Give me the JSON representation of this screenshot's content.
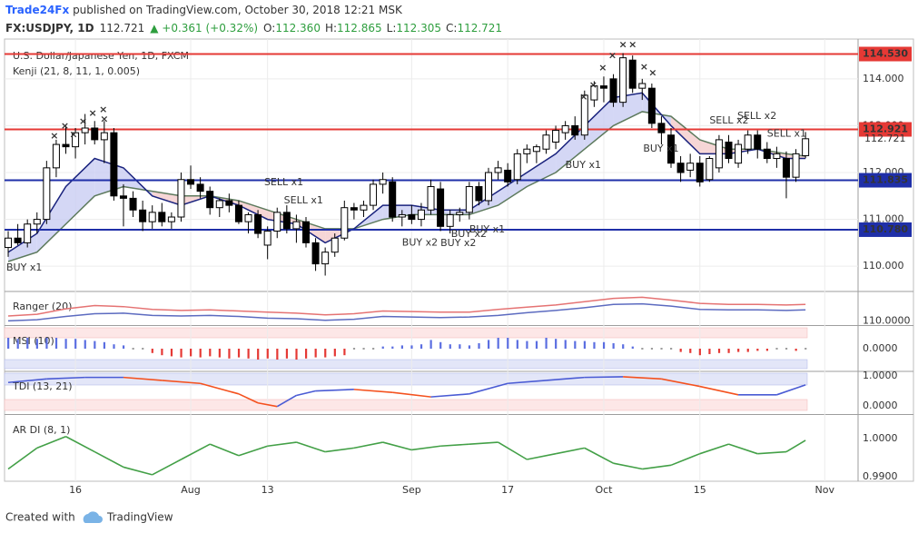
{
  "header": {
    "brand": "Trade24Fx",
    "published": " published on TradingView.com, October 30, 2018 12:21 MSK",
    "symbol": "FX:USDJPY, 1D",
    "price": "112.721",
    "change": "▲ +0.361 (+0.32%)",
    "ohlc": [
      {
        "key": "O:",
        "value": "112.360"
      },
      {
        "key": "H:",
        "value": "112.865"
      },
      {
        "key": "L:",
        "value": "112.305"
      },
      {
        "key": "C:",
        "value": "112.721"
      }
    ]
  },
  "chart_data": {
    "type": "candlestick",
    "title": "U.S. Dollar/Japanese Yen, 1D, FXCM",
    "xlim": [
      -0.38,
      88.47
    ],
    "xticks": [
      {
        "value": 7,
        "label": "16"
      },
      {
        "value": 19,
        "label": "Aug"
      },
      {
        "value": 27,
        "label": "13"
      },
      {
        "value": 42,
        "label": "Sep"
      },
      {
        "value": 52,
        "label": "17"
      },
      {
        "value": 62,
        "label": "Oct"
      },
      {
        "value": 72,
        "label": "15"
      },
      {
        "value": 85,
        "label": "Nov"
      }
    ],
    "ylim": [
      109.48,
      114.85
    ],
    "yticks": [
      {
        "value": 110,
        "label": "110.000"
      },
      {
        "value": 111,
        "label": "111.000"
      },
      {
        "value": 112,
        "label": "112.000"
      },
      {
        "value": 113,
        "label": "113.000"
      },
      {
        "value": 114,
        "label": "114.000"
      }
    ],
    "grid": true,
    "up_color": "#ffffff",
    "down_color": "#000000",
    "open": [
      110.4,
      110.6,
      110.5,
      110.9,
      111.0,
      112.1,
      112.6,
      112.55,
      112.85,
      112.95,
      112.7,
      112.85,
      111.5,
      111.45,
      111.2,
      110.95,
      111.15,
      110.95,
      111.05,
      111.85,
      111.75,
      111.6,
      111.25,
      111.4,
      111.3,
      110.95,
      111.1,
      110.45,
      110.75,
      111.15,
      110.8,
      110.95,
      110.5,
      110.05,
      110.3,
      110.6,
      111.25,
      111.2,
      111.3,
      111.75,
      111.8,
      111.05,
      111.1,
      111.0,
      111.2,
      111.65,
      110.85,
      111.1,
      111.15,
      111.7,
      111.4,
      112.0,
      112.05,
      111.85,
      112.4,
      112.45,
      112.5,
      112.65,
      112.85,
      113.0,
      112.8,
      113.55,
      113.85,
      114.0,
      113.5,
      114.4,
      113.8,
      113.8,
      113.05,
      112.8,
      112.2,
      112.05,
      112.2,
      111.85,
      112.1,
      112.65,
      112.2,
      112.5,
      112.8,
      112.5,
      112.3,
      112.3,
      111.9,
      112.36
    ],
    "high": [
      110.75,
      110.9,
      111.0,
      111.15,
      112.25,
      112.7,
      113.0,
      112.95,
      113.25,
      113.1,
      113.1,
      112.95,
      111.75,
      111.6,
      111.4,
      111.3,
      111.35,
      111.15,
      112.0,
      112.15,
      111.9,
      111.7,
      111.45,
      111.55,
      111.4,
      111.15,
      111.2,
      110.85,
      111.25,
      111.3,
      111.1,
      111.05,
      110.6,
      110.4,
      110.7,
      111.4,
      111.35,
      111.4,
      111.85,
      112.0,
      111.9,
      111.2,
      111.3,
      111.35,
      111.85,
      111.8,
      111.2,
      111.25,
      111.8,
      111.8,
      112.1,
      112.25,
      112.2,
      112.5,
      112.6,
      112.6,
      112.9,
      113.0,
      113.1,
      113.2,
      113.75,
      113.95,
      114.05,
      114.1,
      114.55,
      114.5,
      114.0,
      113.9,
      113.2,
      112.95,
      112.35,
      112.4,
      112.35,
      112.35,
      112.8,
      112.8,
      112.7,
      112.9,
      112.9,
      112.65,
      112.55,
      112.45,
      112.5,
      112.865
    ],
    "low": [
      110.2,
      110.45,
      110.4,
      110.7,
      110.9,
      111.9,
      112.4,
      112.3,
      112.6,
      112.6,
      112.2,
      111.4,
      110.85,
      111.05,
      110.75,
      110.8,
      110.85,
      110.8,
      110.95,
      111.65,
      111.45,
      111.1,
      111.05,
      111.15,
      110.9,
      110.7,
      110.6,
      110.15,
      110.6,
      110.7,
      110.5,
      110.4,
      109.9,
      109.8,
      110.2,
      110.55,
      111.0,
      111.05,
      111.2,
      111.55,
      110.95,
      110.85,
      110.9,
      110.85,
      111.1,
      110.75,
      110.7,
      110.95,
      111.0,
      111.3,
      111.3,
      111.85,
      111.7,
      111.75,
      112.2,
      112.2,
      112.4,
      112.5,
      112.7,
      112.7,
      112.7,
      113.4,
      113.5,
      113.4,
      113.4,
      113.7,
      113.55,
      112.95,
      112.6,
      112.1,
      111.8,
      111.9,
      111.7,
      111.8,
      112.0,
      112.2,
      112.1,
      112.4,
      112.3,
      112.2,
      112.1,
      111.45,
      111.8,
      112.305
    ],
    "close": [
      110.6,
      110.5,
      110.9,
      111.0,
      112.1,
      112.6,
      112.55,
      112.85,
      112.95,
      112.7,
      112.85,
      111.5,
      111.45,
      111.2,
      110.95,
      111.15,
      110.95,
      111.05,
      111.85,
      111.75,
      111.6,
      111.25,
      111.4,
      111.3,
      110.95,
      111.1,
      110.7,
      110.75,
      111.15,
      110.8,
      110.95,
      110.5,
      110.05,
      110.3,
      110.6,
      111.25,
      111.2,
      111.3,
      111.75,
      111.85,
      111.05,
      111.1,
      111.0,
      111.2,
      111.7,
      110.85,
      111.1,
      111.15,
      111.7,
      111.4,
      112.0,
      112.1,
      111.8,
      112.4,
      112.5,
      112.55,
      112.8,
      112.9,
      113.0,
      112.8,
      113.65,
      113.85,
      113.8,
      113.5,
      114.45,
      113.8,
      113.9,
      113.05,
      112.85,
      112.2,
      112.0,
      112.2,
      111.8,
      112.3,
      112.7,
      112.3,
      112.6,
      112.8,
      112.5,
      112.3,
      112.4,
      111.9,
      112.4,
      112.721
    ],
    "last": 112.721,
    "levels": [
      {
        "value": 114.53,
        "label": "114.530",
        "color": "#e53935"
      },
      {
        "value": 112.921,
        "label": "112.921",
        "color": "#e53935"
      },
      {
        "value": 111.835,
        "label": "111.835",
        "color": "#1f2fa8"
      },
      {
        "value": 110.78,
        "label": "110.780",
        "color": "#1f2fa8"
      }
    ],
    "kenji": {
      "name": "Kenji (21, 8, 11, 1, 0.005)",
      "x": [
        0,
        3,
        6,
        9,
        12,
        15,
        18,
        21,
        24,
        27,
        30,
        33,
        36,
        39,
        42,
        45,
        48,
        51,
        54,
        57,
        60,
        63,
        66,
        69,
        72,
        75,
        78,
        81,
        83
      ],
      "fast": {
        "color": "#1a237e",
        "values": [
          110.3,
          110.7,
          111.7,
          112.3,
          112.1,
          111.5,
          111.3,
          111.5,
          111.3,
          111.0,
          110.9,
          110.5,
          110.8,
          111.3,
          111.3,
          111.2,
          111.2,
          111.6,
          112.0,
          112.4,
          113.0,
          113.6,
          113.7,
          113.0,
          112.4,
          112.4,
          112.5,
          112.3,
          112.3
        ]
      },
      "slow": {
        "color": "#5d7a5d",
        "values": [
          110.1,
          110.3,
          110.9,
          111.5,
          111.7,
          111.6,
          111.5,
          111.5,
          111.4,
          111.2,
          111.0,
          110.8,
          110.8,
          111.0,
          111.1,
          111.1,
          111.1,
          111.3,
          111.7,
          112.0,
          112.5,
          113.0,
          113.3,
          113.2,
          112.7,
          112.5,
          112.5,
          112.4,
          112.35
        ]
      },
      "bull_fill": "#c9cdf2",
      "bear_fill": "#f4cccc"
    },
    "signals": [
      {
        "text": "BUY x1",
        "x": -0.19,
        "y": 109.96,
        "color": "#5b6ee1"
      },
      {
        "text": "SELL x1",
        "x": 26.65,
        "y": 111.79,
        "color": "#e04848"
      },
      {
        "text": "SELL x1",
        "x": 28.7,
        "y": 111.4,
        "color": "#e04848"
      },
      {
        "text": "BUY x2",
        "x": 41.0,
        "y": 110.5,
        "color": "#5b6ee1"
      },
      {
        "text": "BUY x2",
        "x": 45.0,
        "y": 110.49,
        "color": "#5b6ee1"
      },
      {
        "text": "BUY x2",
        "x": 46.1,
        "y": 110.68,
        "color": "#5b6ee1"
      },
      {
        "text": "BUY x1",
        "x": 48.0,
        "y": 110.78,
        "color": "#5b6ee1"
      },
      {
        "text": "BUY x1",
        "x": 58.0,
        "y": 112.16,
        "color": "#5b6ee1"
      },
      {
        "text": "BUY x1",
        "x": 66.1,
        "y": 112.5,
        "color": "#5b6ee1"
      },
      {
        "text": "SELL x2",
        "x": 73.0,
        "y": 113.11,
        "color": "#e04848"
      },
      {
        "text": "SELL x2",
        "x": 75.9,
        "y": 113.2,
        "color": "#e04848"
      },
      {
        "text": "SELL x1",
        "x": 79.0,
        "y": 112.82,
        "color": "#e04848"
      }
    ],
    "markers": {
      "symbol": "×",
      "color": "#5b6ee1",
      "x": [
        4.8,
        5.9,
        6.8,
        7.8,
        8.8,
        9.9,
        10.0,
        59.9,
        60.9,
        61.9,
        62.9,
        64.0,
        65.0,
        66.2,
        67.1
      ],
      "y": [
        112.78,
        112.99,
        112.8,
        113.09,
        113.26,
        113.34,
        113.13,
        113.61,
        113.86,
        114.23,
        114.49,
        114.72,
        114.72,
        114.25,
        114.12
      ]
    },
    "indicators": [
      {
        "type": "bands",
        "name": "Ranger (20)",
        "ylim": [
          109.4,
          115.2
        ],
        "yticks": [
          {
            "value": 110,
            "label": "110.0000"
          }
        ],
        "x": [
          0,
          3,
          6,
          9,
          12,
          15,
          18,
          21,
          24,
          27,
          30,
          33,
          36,
          39,
          42,
          45,
          48,
          51,
          54,
          57,
          60,
          63,
          66,
          69,
          72,
          75,
          78,
          81,
          83
        ],
        "series": [
          {
            "color": "#e57373",
            "values": [
              110.9,
              111.2,
              112.2,
              112.8,
              112.6,
              112.1,
              111.9,
              112.0,
              111.8,
              111.6,
              111.4,
              111.1,
              111.3,
              111.8,
              111.7,
              111.6,
              111.6,
              112.1,
              112.5,
              112.9,
              113.5,
              114.1,
              114.3,
              113.8,
              113.2,
              113.0,
              113.0,
              112.9,
              113.0
            ]
          },
          {
            "color": "#5c6bc0",
            "values": [
              110.0,
              110.2,
              110.8,
              111.3,
              111.4,
              111.0,
              110.9,
              111.0,
              110.8,
              110.5,
              110.4,
              110.1,
              110.3,
              110.8,
              110.7,
              110.6,
              110.7,
              111.0,
              111.5,
              111.9,
              112.4,
              113.0,
              113.1,
              112.7,
              112.1,
              112.0,
              112.0,
              111.9,
              112.0
            ]
          }
        ]
      },
      {
        "type": "histogram",
        "name": "MSI (10)",
        "ylim": [
          -1,
          1
        ],
        "yticks": [
          {
            "value": 0,
            "label": "0.0000"
          }
        ],
        "up_color": "#5b6ee1",
        "down_color": "#e53935",
        "zero_color": "#9e9e9e",
        "values": [
          0.5,
          0.45,
          0.5,
          0.45,
          0.5,
          0.5,
          0.45,
          0.45,
          0.4,
          0.35,
          0.3,
          0.2,
          0.15,
          0,
          0,
          -0.2,
          -0.3,
          -0.35,
          -0.4,
          -0.35,
          -0.4,
          -0.35,
          -0.4,
          -0.45,
          -0.4,
          -0.45,
          -0.5,
          -0.45,
          -0.5,
          -0.45,
          -0.5,
          -0.45,
          -0.4,
          -0.4,
          -0.35,
          -0.3,
          0,
          0,
          0,
          0.1,
          0.1,
          0.15,
          0.15,
          0.2,
          0.4,
          0.3,
          0.2,
          0.2,
          0.15,
          0.25,
          0.4,
          0.5,
          0.5,
          0.4,
          0.35,
          0.35,
          0.5,
          0.45,
          0.4,
          0.35,
          0.35,
          0.3,
          0.3,
          0.25,
          0.2,
          0.1,
          0,
          0,
          0,
          0,
          -0.15,
          -0.2,
          -0.3,
          -0.25,
          -0.2,
          -0.2,
          -0.15,
          -0.15,
          -0.1,
          -0.1,
          0,
          0,
          -0.1,
          0
        ]
      },
      {
        "type": "line",
        "name": "TDI (13, 21)",
        "ylim": [
          -0.24,
          1.12
        ],
        "yticks": [
          {
            "value": 1,
            "label": "1.0000"
          },
          {
            "value": 0,
            "label": "0.0000"
          }
        ],
        "rise_color": "#4a5bd4",
        "fall_color": "#f4511e",
        "x": [
          0,
          4,
          8,
          12,
          16,
          20,
          24,
          26,
          28,
          30,
          32,
          36,
          40,
          44,
          48,
          52,
          56,
          60,
          64,
          68,
          72,
          76,
          80,
          83
        ],
        "values": [
          0.78,
          0.9,
          0.95,
          0.95,
          0.85,
          0.75,
          0.4,
          0.1,
          -0.02,
          0.35,
          0.5,
          0.55,
          0.45,
          0.3,
          0.4,
          0.75,
          0.85,
          0.95,
          0.97,
          0.9,
          0.65,
          0.37,
          0.37,
          0.7
        ]
      },
      {
        "type": "line",
        "name": "AR DI (8, 1)",
        "ylim": [
          0.9888,
          1.0059
        ],
        "yticks": [
          {
            "value": 1,
            "label": "1.0000"
          },
          {
            "value": 0.99,
            "label": "0.9900"
          }
        ],
        "rise_color": "#43a047",
        "fall_color": "#43a047",
        "x": [
          0,
          3,
          6,
          9,
          12,
          15,
          18,
          21,
          24,
          27,
          30,
          33,
          36,
          39,
          42,
          45,
          48,
          51,
          54,
          57,
          60,
          63,
          66,
          69,
          72,
          75,
          78,
          81,
          83
        ],
        "values": [
          0.992,
          0.9975,
          1.0005,
          0.9965,
          0.9925,
          0.9905,
          0.9945,
          0.9985,
          0.9955,
          0.998,
          0.999,
          0.9965,
          0.9975,
          0.999,
          0.997,
          0.998,
          0.9985,
          0.999,
          0.9945,
          0.996,
          0.9975,
          0.9935,
          0.992,
          0.993,
          0.996,
          0.9985,
          0.996,
          0.9965,
          0.9995
        ]
      }
    ]
  },
  "footer": {
    "created": "Created with",
    "brand": "TradingView"
  }
}
